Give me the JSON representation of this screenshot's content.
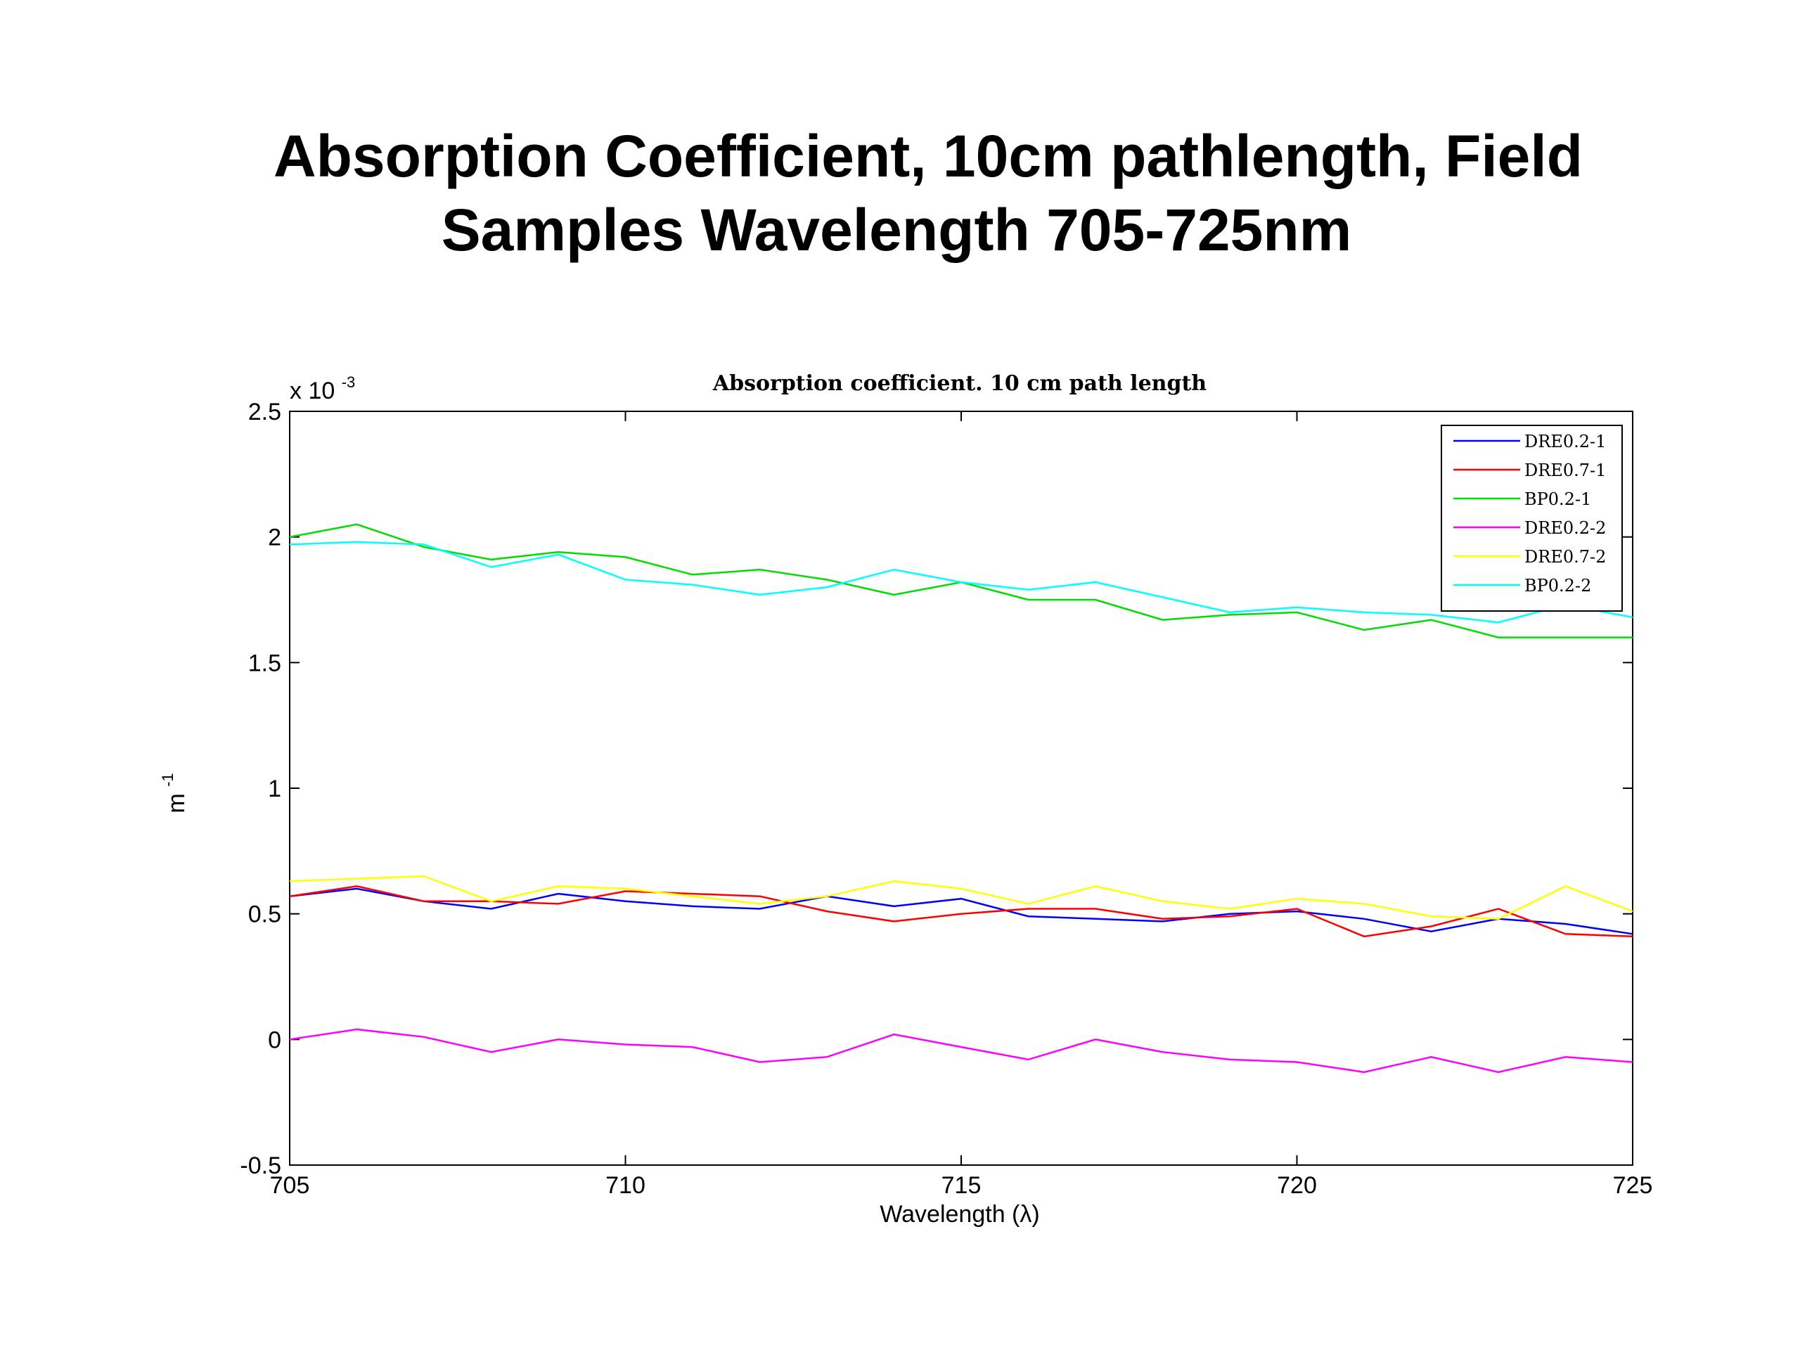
{
  "slide": {
    "title_line_1": "Absorption Coefficient, 10cm pathlength, Field",
    "title_line_2": "Samples Wavelength 705-725nm"
  },
  "chart_data": {
    "type": "line",
    "title": "Absorption coefficient. 10 cm path length",
    "xlabel": "Wavelength (λ)",
    "ylabel": "m",
    "ylabel_superscript": "-1",
    "scale_label": "x 10",
    "scale_exponent": "-3",
    "xlim": [
      705,
      725
    ],
    "ylim": [
      -0.5,
      2.5
    ],
    "x_ticks": [
      705,
      710,
      715,
      720,
      725
    ],
    "y_ticks": [
      -0.5,
      0,
      0.5,
      1,
      1.5,
      2,
      2.5
    ],
    "y_tick_labels": [
      "-0.5",
      "0",
      "0.5",
      "1",
      "1.5",
      "2",
      "2.5"
    ],
    "legend_position": "top-right",
    "grid": false,
    "x": [
      705,
      706,
      707,
      708,
      709,
      710,
      711,
      712,
      713,
      714,
      715,
      716,
      717,
      718,
      719,
      720,
      721,
      722,
      723,
      724,
      725
    ],
    "series": [
      {
        "name": "DRE0.2-1",
        "color": "#0000ff",
        "values": [
          0.57,
          0.6,
          0.55,
          0.52,
          0.58,
          0.55,
          0.53,
          0.52,
          0.57,
          0.53,
          0.56,
          0.49,
          0.48,
          0.47,
          0.5,
          0.51,
          0.48,
          0.43,
          0.48,
          0.46,
          0.42
        ]
      },
      {
        "name": "DRE0.7-1",
        "color": "#ff0000",
        "values": [
          0.57,
          0.61,
          0.55,
          0.55,
          0.54,
          0.59,
          0.58,
          0.57,
          0.51,
          0.47,
          0.5,
          0.52,
          0.52,
          0.48,
          0.49,
          0.52,
          0.41,
          0.45,
          0.52,
          0.42,
          0.41
        ]
      },
      {
        "name": "BP0.2-1",
        "color": "#00dd00",
        "values": [
          2.0,
          2.05,
          1.96,
          1.91,
          1.94,
          1.92,
          1.85,
          1.87,
          1.83,
          1.77,
          1.82,
          1.75,
          1.75,
          1.67,
          1.69,
          1.7,
          1.63,
          1.67,
          1.6,
          1.6,
          1.6
        ]
      },
      {
        "name": "DRE0.2-2",
        "color": "#ff00ff",
        "values": [
          0.0,
          0.04,
          0.01,
          -0.05,
          0.0,
          -0.02,
          -0.03,
          -0.09,
          -0.07,
          0.02,
          -0.03,
          -0.08,
          0.0,
          -0.05,
          -0.08,
          -0.09,
          -0.13,
          -0.07,
          -0.13,
          -0.07,
          -0.09
        ]
      },
      {
        "name": "DRE0.7-2",
        "color": "#ffff00",
        "values": [
          0.63,
          0.64,
          0.65,
          0.55,
          0.61,
          0.6,
          0.57,
          0.54,
          0.57,
          0.63,
          0.6,
          0.54,
          0.61,
          0.55,
          0.52,
          0.56,
          0.54,
          0.49,
          0.48,
          0.61,
          0.51
        ]
      },
      {
        "name": "BP0.2-2",
        "color": "#00ffff",
        "values": [
          1.97,
          1.98,
          1.97,
          1.88,
          1.93,
          1.83,
          1.81,
          1.77,
          1.8,
          1.87,
          1.82,
          1.79,
          1.82,
          1.76,
          1.7,
          1.72,
          1.7,
          1.69,
          1.66,
          1.73,
          1.68
        ]
      }
    ]
  }
}
